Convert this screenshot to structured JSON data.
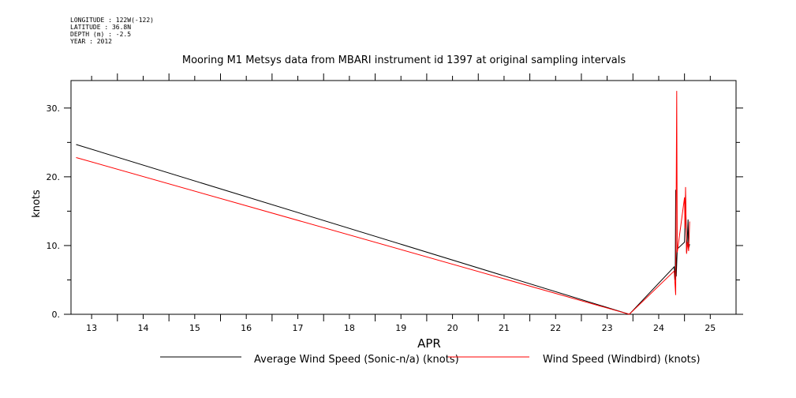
{
  "header": {
    "lines": [
      "LONGITUDE : 122W(-122)",
      "LATITUDE : 36.8N",
      "DEPTH (m) : -2.5",
      "YEAR : 2012"
    ]
  },
  "chart_data": {
    "type": "line",
    "title": "Mooring M1 Metsys data from MBARI instrument id 1397 at original sampling intervals",
    "xlabel": "APR",
    "ylabel": "knots",
    "xlim": [
      12.6,
      25.5
    ],
    "ylim": [
      0,
      34
    ],
    "x_ticks": [
      13,
      14,
      15,
      16,
      17,
      18,
      19,
      20,
      21,
      22,
      23,
      24,
      25
    ],
    "x_tick_labels": [
      "13",
      "14",
      "15",
      "16",
      "17",
      "18",
      "19",
      "20",
      "21",
      "22",
      "23",
      "24",
      "25"
    ],
    "y_ticks": [
      0,
      10,
      20,
      30
    ],
    "y_tick_labels": [
      "0.",
      "10.",
      "20.",
      "30."
    ],
    "y_minor_ticks": [
      5,
      15,
      25
    ],
    "grid": false,
    "legend_position": "bottom",
    "series": [
      {
        "name": "Average Wind Speed (Sonic-n/a) (knots)",
        "color": "#000000",
        "points": [
          [
            12.7,
            24.7
          ],
          [
            23.43,
            0.0
          ],
          [
            24.3,
            6.9
          ],
          [
            24.32,
            5.0
          ],
          [
            24.33,
            18.1
          ],
          [
            24.34,
            5.5
          ],
          [
            24.36,
            9.5
          ],
          [
            24.5,
            10.5
          ],
          [
            24.52,
            17.5
          ],
          [
            24.54,
            9.0
          ],
          [
            24.55,
            10.0
          ],
          [
            24.57,
            13.8
          ],
          [
            24.58,
            9.6
          ],
          [
            24.6,
            10.2
          ]
        ]
      },
      {
        "name": "Wind Speed (Windbird) (knots)",
        "color": "#ff0000",
        "points": [
          [
            12.7,
            22.8
          ],
          [
            23.43,
            0.0
          ],
          [
            24.3,
            6.3
          ],
          [
            24.33,
            2.8
          ],
          [
            24.35,
            32.5
          ],
          [
            24.36,
            9.0
          ],
          [
            24.5,
            17.0
          ],
          [
            24.51,
            12.5
          ],
          [
            24.52,
            18.5
          ],
          [
            24.54,
            8.8
          ],
          [
            24.56,
            10.5
          ],
          [
            24.58,
            9.2
          ],
          [
            24.6,
            13.5
          ]
        ]
      }
    ]
  }
}
